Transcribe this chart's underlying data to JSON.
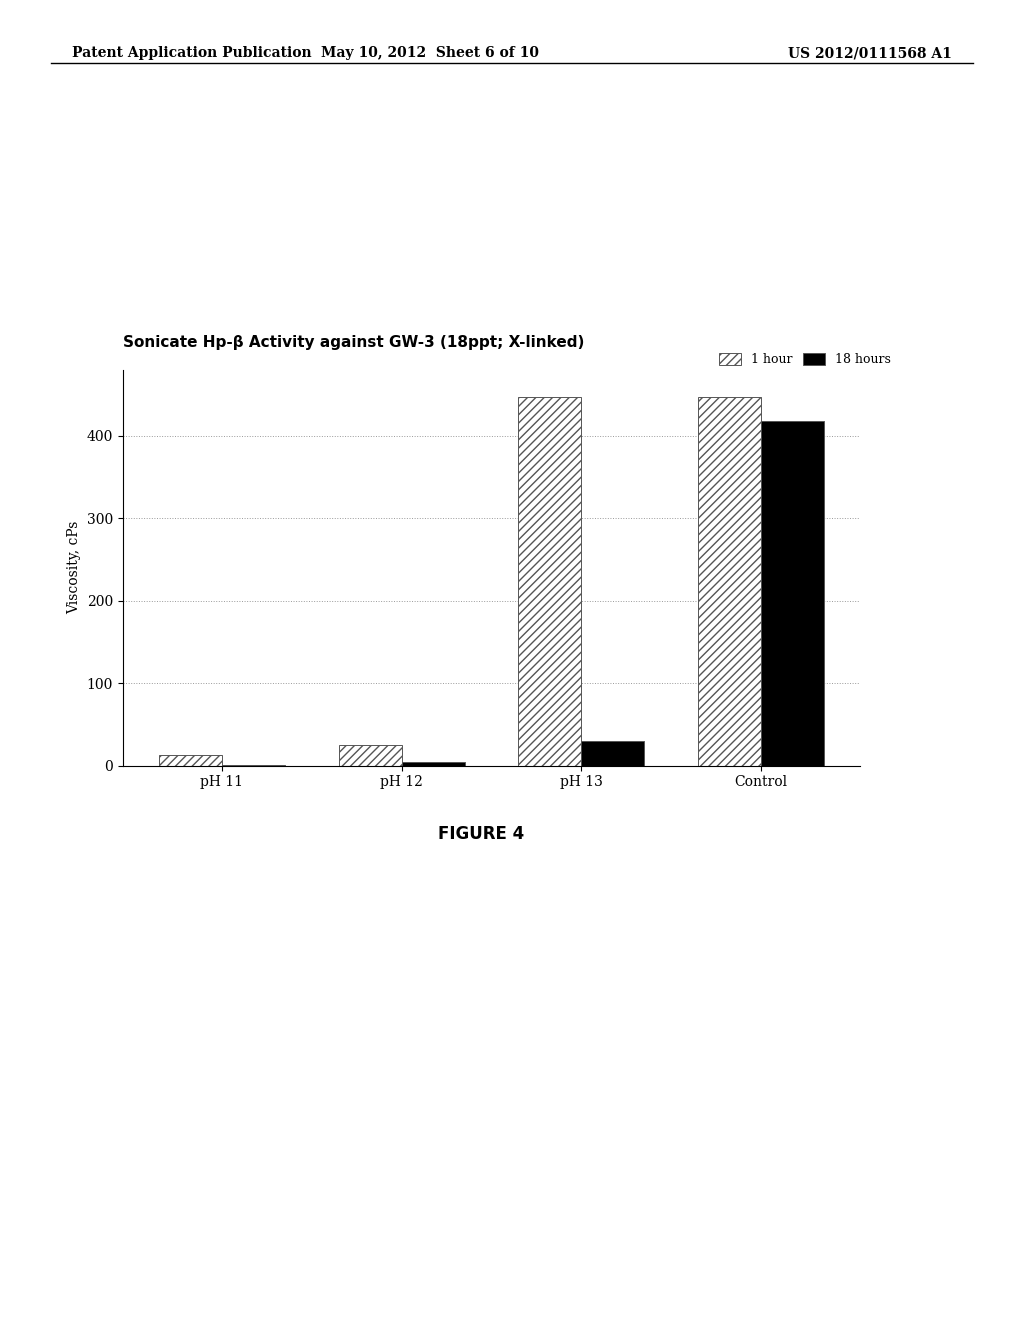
{
  "title": "Sonicate Hp-β Activity against GW-3 (18ppt; X-linked)",
  "ylabel": "Viscosity, cPs",
  "categories": [
    "pH 11",
    "pH 12",
    "pH 13",
    "Control"
  ],
  "values_1hour": [
    13,
    25,
    447,
    447
  ],
  "values_18hours": [
    1,
    4,
    30,
    418
  ],
  "ylim": [
    0,
    480
  ],
  "yticks": [
    0,
    100,
    200,
    300,
    400
  ],
  "bar_width": 0.35,
  "hatch_1hour": "////",
  "color_1hour": "white",
  "color_18hours": "black",
  "edgecolor": "#555555",
  "legend_labels": [
    "1 hour",
    "18 hours"
  ],
  "figure_caption": "FIGURE 4",
  "header_left": "Patent Application Publication",
  "header_mid": "May 10, 2012  Sheet 6 of 10",
  "header_right": "US 2012/0111568 A1",
  "bg_color": "white",
  "fig_width": 10.24,
  "fig_height": 13.2,
  "dpi": 100
}
